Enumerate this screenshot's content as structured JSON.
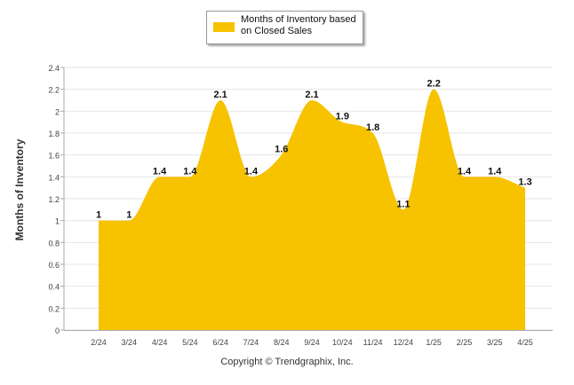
{
  "legend": {
    "label": "Months of Inventory based on Closed Sales"
  },
  "footer": {
    "copyright": "Copyright © Trendgraphix, Inc."
  },
  "chart_data": {
    "type": "area",
    "ylabel": "Months of Inventory",
    "ylim": [
      0,
      2.4
    ],
    "yticks": [
      "0",
      "0.2",
      "0.4",
      "0.6",
      "0.8",
      "1",
      "1.2",
      "1.4",
      "1.6",
      "1.8",
      "2",
      "2.2",
      "2.4"
    ],
    "categories": [
      "2/24",
      "3/24",
      "4/24",
      "5/24",
      "6/24",
      "7/24",
      "8/24",
      "9/24",
      "10/24",
      "11/24",
      "12/24",
      "1/25",
      "2/25",
      "3/25",
      "4/25"
    ],
    "series": [
      {
        "name": "Months of Inventory based on Closed Sales",
        "values": [
          1,
          1,
          1.4,
          1.4,
          2.1,
          1.4,
          1.6,
          2.1,
          1.9,
          1.8,
          1.1,
          2.2,
          1.4,
          1.4,
          1.3
        ],
        "labels": [
          "1",
          "1",
          "1.4",
          "1.4",
          "2.1",
          "1.4",
          "1.6",
          "2.1",
          "1.9",
          "1.8",
          "1.1",
          "2.2",
          "1.4",
          "1.4",
          "1.3"
        ],
        "color": "#f7c200"
      }
    ],
    "grid": true,
    "legend_position": "top"
  }
}
